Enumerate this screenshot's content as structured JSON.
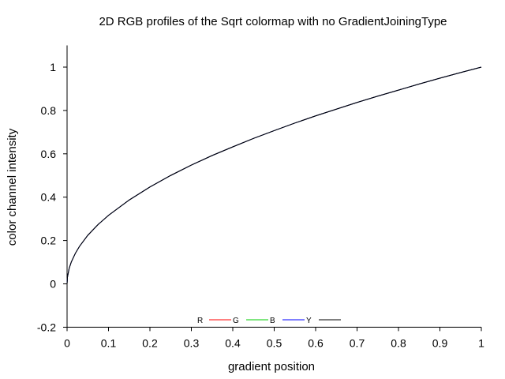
{
  "chart_data": {
    "type": "line",
    "title": "2D RGB profiles of the Sqrt colormap with no GradientJoiningType",
    "xlabel": "gradient position",
    "ylabel": "color channel intensity",
    "xlim": [
      0,
      1
    ],
    "ylim": [
      -0.2,
      1.1
    ],
    "x_ticks": [
      "0",
      "0.1",
      "0.2",
      "0.3",
      "0.4",
      "0.5",
      "0.6",
      "0.7",
      "0.8",
      "0.9",
      "1"
    ],
    "y_ticks": [
      "-0.2",
      "0",
      "0.2",
      "0.4",
      "0.6",
      "0.8",
      "1"
    ],
    "grid": false,
    "legend_position": "bottom-center",
    "x": [
      0,
      0.001,
      0.005,
      0.01,
      0.02,
      0.03,
      0.05,
      0.075,
      0.1,
      0.15,
      0.2,
      0.25,
      0.3,
      0.35,
      0.4,
      0.45,
      0.5,
      0.55,
      0.6,
      0.65,
      0.7,
      0.75,
      0.8,
      0.85,
      0.9,
      0.95,
      1
    ],
    "series": [
      {
        "name": "R",
        "color": "#ff0000",
        "values": [
          0,
          0.032,
          0.071,
          0.1,
          0.141,
          0.173,
          0.224,
          0.274,
          0.316,
          0.387,
          0.447,
          0.5,
          0.548,
          0.592,
          0.632,
          0.671,
          0.707,
          0.742,
          0.775,
          0.806,
          0.837,
          0.866,
          0.894,
          0.922,
          0.949,
          0.975,
          1
        ]
      },
      {
        "name": "G",
        "color": "#00cc00",
        "values": [
          0,
          0.032,
          0.071,
          0.1,
          0.141,
          0.173,
          0.224,
          0.274,
          0.316,
          0.387,
          0.447,
          0.5,
          0.548,
          0.592,
          0.632,
          0.671,
          0.707,
          0.742,
          0.775,
          0.806,
          0.837,
          0.866,
          0.894,
          0.922,
          0.949,
          0.975,
          1
        ]
      },
      {
        "name": "B",
        "color": "#0000ff",
        "values": [
          0,
          0.032,
          0.071,
          0.1,
          0.141,
          0.173,
          0.224,
          0.274,
          0.316,
          0.387,
          0.447,
          0.5,
          0.548,
          0.592,
          0.632,
          0.671,
          0.707,
          0.742,
          0.775,
          0.806,
          0.837,
          0.866,
          0.894,
          0.922,
          0.949,
          0.975,
          1
        ]
      },
      {
        "name": "Y",
        "color": "#000000",
        "values": [
          0,
          0.032,
          0.071,
          0.1,
          0.141,
          0.173,
          0.224,
          0.274,
          0.316,
          0.387,
          0.447,
          0.5,
          0.548,
          0.592,
          0.632,
          0.671,
          0.707,
          0.742,
          0.775,
          0.806,
          0.837,
          0.866,
          0.894,
          0.922,
          0.949,
          0.975,
          1
        ]
      }
    ]
  }
}
